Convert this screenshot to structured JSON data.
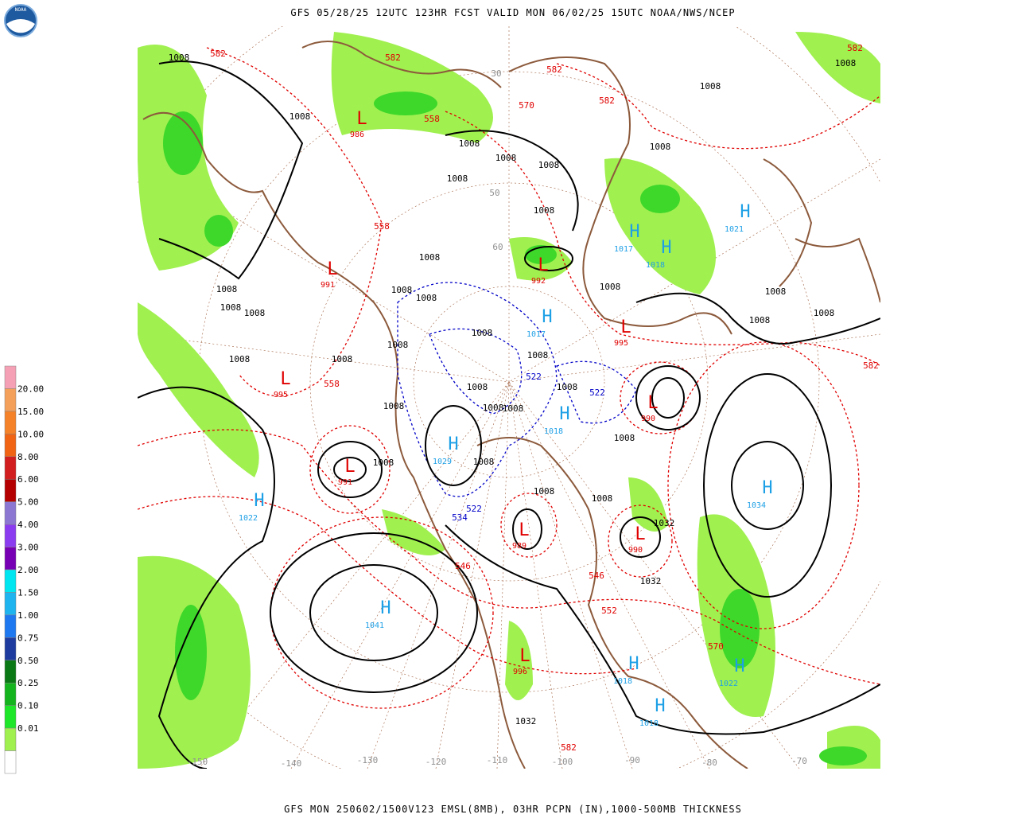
{
  "header": {
    "title": "GFS 05/28/25 12UTC 123HR FCST VALID MON 06/02/25 15UTC NOAA/NWS/NCEP",
    "footer": "GFS MON 250602/1500V123 EMSL(8MB), 03HR PCPN (IN),1000-500MB THICKNESS",
    "logo": "NOAA"
  },
  "legend": {
    "labels": [
      "20.00",
      "15.00",
      "10.00",
      "8.00",
      "6.00",
      "5.00",
      "4.00",
      "3.00",
      "2.00",
      "1.50",
      "1.00",
      "0.75",
      "0.50",
      "0.25",
      "0.10",
      "0.01"
    ],
    "colors": [
      "#f5a0b4",
      "#f5a05a",
      "#f58228",
      "#f06414",
      "#d21e1e",
      "#b40000",
      "#8c78d2",
      "#8c3cf0",
      "#7800b4",
      "#00e6f0",
      "#1eb4f0",
      "#1e78f0",
      "#1e3ca0",
      "#0a7814",
      "#14b41e",
      "#1ee628",
      "#a0f050",
      "#ffffff"
    ]
  },
  "highs": [
    {
      "symbol": "H",
      "pressure": 1021
    },
    {
      "symbol": "H",
      "pressure": 1017
    },
    {
      "symbol": "H",
      "pressure": 1018
    },
    {
      "symbol": "H",
      "pressure": 1017
    },
    {
      "symbol": "H",
      "pressure": 1029
    },
    {
      "symbol": "H",
      "pressure": 1022
    },
    {
      "symbol": "H",
      "pressure": 1034
    },
    {
      "symbol": "H",
      "pressure": 1041
    },
    {
      "symbol": "H",
      "pressure": 1018
    },
    {
      "symbol": "H",
      "pressure": 1018
    },
    {
      "symbol": "H",
      "pressure": 1022
    },
    {
      "symbol": "H",
      "pressure": 1018
    }
  ],
  "lows": [
    {
      "symbol": "L",
      "pressure": 991
    },
    {
      "symbol": "L",
      "pressure": 995
    },
    {
      "symbol": "L",
      "pressure": 992
    },
    {
      "symbol": "L",
      "pressure": 995
    },
    {
      "symbol": "L",
      "pressure": 991
    },
    {
      "symbol": "L",
      "pressure": 989
    },
    {
      "symbol": "L",
      "pressure": 990
    },
    {
      "symbol": "L",
      "pressure": 996
    },
    {
      "symbol": "L",
      "pressure": 990
    },
    {
      "symbol": "L",
      "pressure": 986
    }
  ],
  "isobar_labels": [
    1008,
    1008,
    1008,
    1008,
    1008,
    1008,
    1008,
    1008,
    1008,
    1008,
    1008,
    1008,
    1008,
    1008,
    1008,
    1008,
    1008,
    1008,
    1008,
    1008,
    1008,
    1008,
    1008,
    1008,
    1008,
    1008,
    1008,
    1008,
    1008,
    1008,
    1008,
    1008,
    1008,
    1008,
    1008,
    1032,
    1032,
    1032
  ],
  "thickness_labels": [
    582,
    582,
    582,
    582,
    582,
    582,
    582,
    570,
    570,
    558,
    558,
    558,
    546,
    546,
    552
  ],
  "thickness_labels_cold": [
    522,
    522,
    522,
    534
  ],
  "longitude_labels": [
    -150,
    -140,
    -130,
    -120,
    -110,
    -100,
    -90,
    -80,
    -70
  ],
  "latitude_labels": [
    30,
    50,
    60
  ]
}
